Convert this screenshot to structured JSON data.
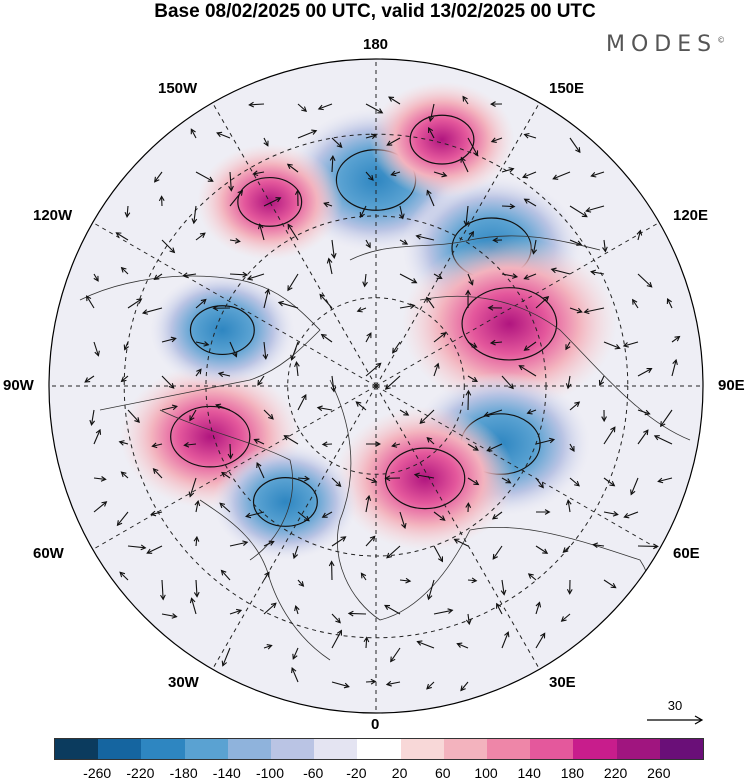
{
  "title": "Base 08/02/2025 00 UTC, valid 13/02/2025 00 UTC",
  "brand": "MODES",
  "brand_mark": "©",
  "longitude_labels": {
    "n180": "180",
    "w150": "150W",
    "e150": "150E",
    "w120": "120W",
    "e120": "120E",
    "w90": "90W",
    "e90": "90E",
    "w60": "60W",
    "e60": "60E",
    "w30": "30W",
    "e30": "30E",
    "s0": "0"
  },
  "reference_vector_label": "30",
  "colorbar": {
    "colors": [
      "#0b3b5e",
      "#1565a0",
      "#2e86c1",
      "#5aa2d2",
      "#8fb3dc",
      "#bac4e4",
      "#e4e4f2",
      "#ffffff",
      "#f8d8d8",
      "#f3b3be",
      "#ee86a8",
      "#e4589c",
      "#c81d8c",
      "#a0157f",
      "#6a0f78"
    ],
    "tick_labels": [
      "-260",
      "-220",
      "-180",
      "-140",
      "-100",
      "-60",
      "-20",
      "20",
      "60",
      "100",
      "140",
      "180",
      "220",
      "260"
    ]
  },
  "anomaly_blobs": [
    {
      "sign": "neg",
      "level": 3,
      "lon": 180,
      "colat": 0.63
    },
    {
      "sign": "neg",
      "level": 3,
      "lon": 140,
      "colat": 0.55
    },
    {
      "sign": "pos",
      "level": 4,
      "lon": 115,
      "colat": 0.45
    },
    {
      "sign": "neg",
      "level": 3,
      "lon": 65,
      "colat": 0.42
    },
    {
      "sign": "pos",
      "level": 3,
      "lon": 28,
      "colat": 0.32
    },
    {
      "sign": "pos",
      "level": 3,
      "lon": -73,
      "colat": 0.53
    },
    {
      "sign": "neg",
      "level": 2,
      "lon": -110,
      "colat": 0.5
    },
    {
      "sign": "neg",
      "level": 2,
      "lon": -38,
      "colat": 0.45
    },
    {
      "sign": "pos",
      "level": 2,
      "lon": -150,
      "colat": 0.65
    },
    {
      "sign": "pos",
      "level": 2,
      "lon": 165,
      "colat": 0.78
    }
  ]
}
